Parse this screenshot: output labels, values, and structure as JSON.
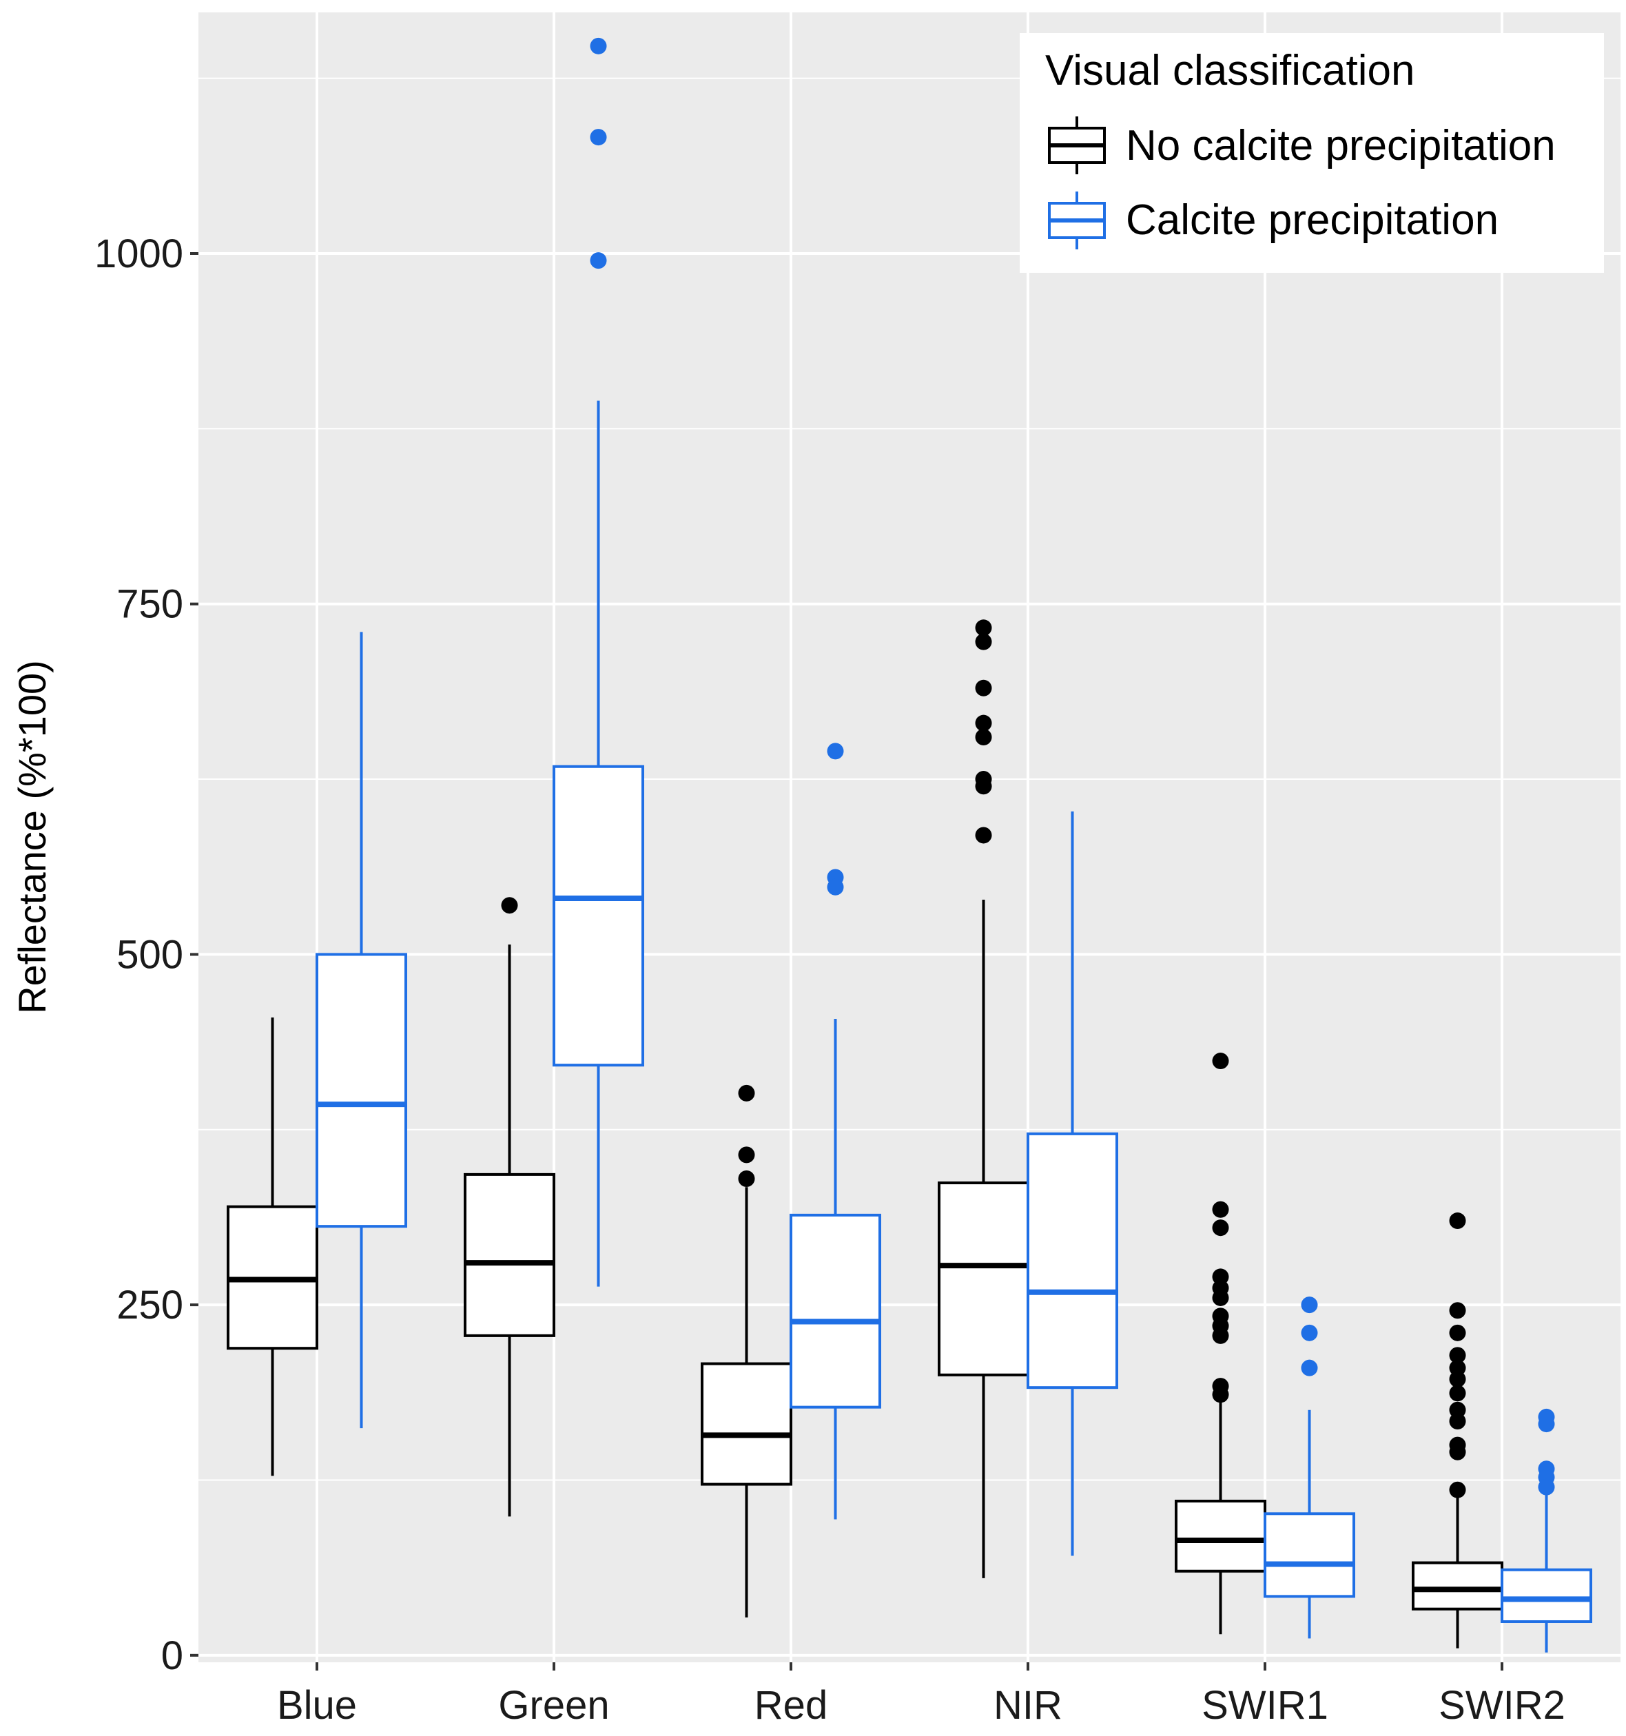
{
  "chart_data": {
    "type": "boxplot",
    "title": "",
    "xlabel": "",
    "ylabel": "Reflectance (%*100)",
    "ylim": [
      -5,
      1172
    ],
    "yticks": [
      0,
      250,
      500,
      750,
      1000
    ],
    "ytick_labels": [
      "0",
      "250",
      "500",
      "750",
      "1000"
    ],
    "y_minor_grid": [
      125,
      375,
      625,
      875,
      1125
    ],
    "categories": [
      "Blue",
      "Green",
      "Red",
      "NIR",
      "SWIR1",
      "SWIR2"
    ],
    "grid": true,
    "legend": {
      "title": "Visual classification",
      "position": "top-right"
    },
    "colors": {
      "panel_background": "#ebebeb",
      "grid": "#ffffff",
      "no_calcite": "#000000",
      "calcite": "#1f6fe5"
    },
    "series": [
      {
        "name": "No calcite precipitation",
        "color": "#000000",
        "boxes": [
          {
            "whisker_low": 128,
            "q1": 219,
            "median": 268,
            "q3": 320,
            "whisker_high": 455,
            "outliers": []
          },
          {
            "whisker_low": 99,
            "q1": 228,
            "median": 280,
            "q3": 343,
            "whisker_high": 507,
            "outliers": [
              535
            ]
          },
          {
            "whisker_low": 27,
            "q1": 122,
            "median": 157,
            "q3": 208,
            "whisker_high": 334,
            "outliers": [
              401,
              357,
              340
            ]
          },
          {
            "whisker_low": 55,
            "q1": 200,
            "median": 278,
            "q3": 337,
            "whisker_high": 539,
            "outliers": [
              733,
              723,
              690,
              665,
              655,
              625,
              620,
              585
            ]
          },
          {
            "whisker_low": 15,
            "q1": 60,
            "median": 82,
            "q3": 110,
            "whisker_high": 182,
            "outliers": [
              424,
              318,
              305,
              270,
              262,
              255,
              242,
              235,
              228,
              192,
              186
            ]
          },
          {
            "whisker_low": 5,
            "q1": 33,
            "median": 47,
            "q3": 66,
            "whisker_high": 117,
            "outliers": [
              310,
              246,
              230,
              214,
              205,
              197,
              187,
              175,
              167,
              150,
              145,
              118
            ]
          }
        ]
      },
      {
        "name": "Calcite precipitation",
        "color": "#1f6fe5",
        "boxes": [
          {
            "whisker_low": 162,
            "q1": 306,
            "median": 393,
            "q3": 500,
            "whisker_high": 730,
            "outliers": []
          },
          {
            "whisker_low": 263,
            "q1": 421,
            "median": 540,
            "q3": 634,
            "whisker_high": 895,
            "outliers": [
              1148,
              1083,
              995
            ]
          },
          {
            "whisker_low": 97,
            "q1": 177,
            "median": 238,
            "q3": 314,
            "whisker_high": 454,
            "outliers": [
              645,
              555,
              548
            ]
          },
          {
            "whisker_low": 71,
            "q1": 191,
            "median": 259,
            "q3": 372,
            "whisker_high": 602,
            "outliers": []
          },
          {
            "whisker_low": 12,
            "q1": 42,
            "median": 65,
            "q3": 101,
            "whisker_high": 175,
            "outliers": [
              250,
              230,
              205
            ]
          },
          {
            "whisker_low": 2,
            "q1": 24,
            "median": 40,
            "q3": 61,
            "whisker_high": 119,
            "outliers": [
              170,
              165,
              133,
              127,
              120
            ]
          }
        ]
      }
    ]
  }
}
